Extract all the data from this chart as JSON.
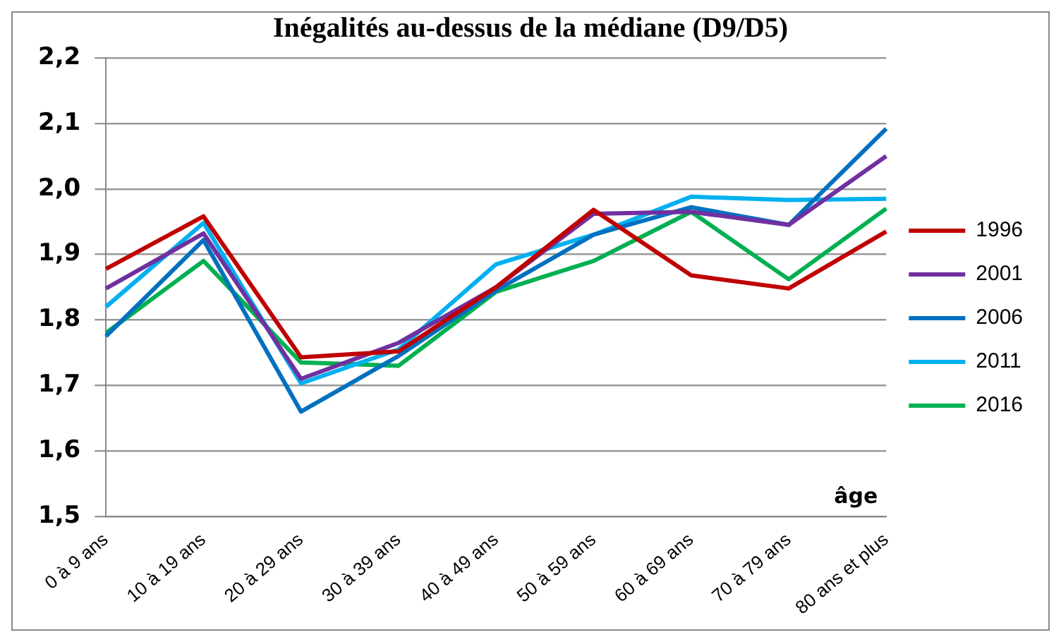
{
  "chart_data": {
    "type": "line",
    "title": "Inégalités au-dessus de la médiane (D9/D5)",
    "xlabel": "âge",
    "categories": [
      "0 à 9 ans",
      "10 à 19 ans",
      "20 à 29 ans",
      "30 à 39 ans",
      "40 à 49 ans",
      "50 à 59 ans",
      "60 à 69 ans",
      "70 à 79 ans",
      "80 ans et plus"
    ],
    "series": [
      {
        "name": "1996",
        "color": "#c00000",
        "values": [
          1.878,
          1.958,
          1.743,
          1.752,
          1.85,
          1.968,
          1.868,
          1.848,
          1.935
        ]
      },
      {
        "name": "2001",
        "color": "#7030a0",
        "values": [
          1.848,
          1.932,
          1.71,
          1.765,
          1.85,
          1.962,
          1.965,
          1.945,
          2.05
        ]
      },
      {
        "name": "2006",
        "color": "#0070c0",
        "values": [
          1.775,
          1.922,
          1.66,
          1.745,
          1.845,
          1.93,
          1.972,
          1.945,
          2.092
        ]
      },
      {
        "name": "2011",
        "color": "#00b0f0",
        "values": [
          1.82,
          1.948,
          1.703,
          1.755,
          1.885,
          1.93,
          1.988,
          1.983,
          1.985
        ]
      },
      {
        "name": "2016",
        "color": "#00b050",
        "values": [
          1.78,
          1.89,
          1.735,
          1.73,
          1.843,
          1.89,
          1.965,
          1.862,
          1.97
        ]
      }
    ],
    "ylim": [
      1.5,
      2.2
    ],
    "yticks": [
      {
        "value": 1.5,
        "label": "1,5"
      },
      {
        "value": 1.6,
        "label": "1,6"
      },
      {
        "value": 1.7,
        "label": "1,7"
      },
      {
        "value": 1.8,
        "label": "1,8"
      },
      {
        "value": 1.9,
        "label": "1,9"
      },
      {
        "value": 2.0,
        "label": "2,0"
      },
      {
        "value": 2.1,
        "label": "2,1"
      },
      {
        "value": 2.2,
        "label": "2,2"
      }
    ],
    "grid": "y",
    "legend": "right",
    "marker": "none",
    "line_style": "solid"
  }
}
